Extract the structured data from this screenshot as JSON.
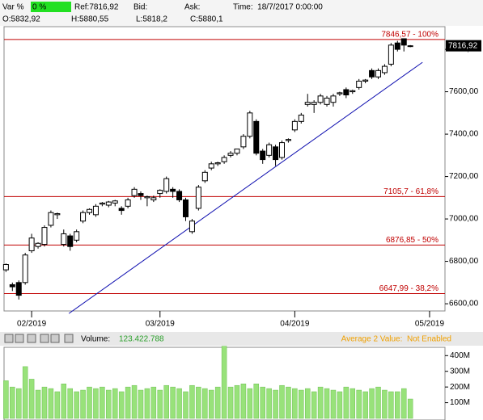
{
  "header": {
    "var_label": "Var %",
    "var_value": "0 %",
    "ref": "Ref:7816,92",
    "bid": "Bid:",
    "ask": "Ask:",
    "time": "Time:  18/7/2017 0:00:00",
    "open": "O:5832,92",
    "high": "H:5880,55",
    "low": "L:5818,2",
    "close": "C:5880,1"
  },
  "volume_bar": {
    "label": "Volume:",
    "value": "123.422.788",
    "average": "Average 2 Value:  Not Enabled"
  },
  "chart_data": [
    {
      "type": "candlestick",
      "last_label": "7816,92",
      "last_value": 7816.92,
      "xlim": [
        -0.3,
        68.4
      ],
      "xticks": [
        {
          "value": 4,
          "label": "02/2019"
        },
        {
          "value": 24,
          "label": "03/2019"
        },
        {
          "value": 45,
          "label": "04/2019"
        },
        {
          "value": 66,
          "label": "05/2019"
        }
      ],
      "ylim": [
        6566,
        7907
      ],
      "yticks": [
        {
          "value": 6600,
          "label": "6600,00"
        },
        {
          "value": 6800,
          "label": "6800,00"
        },
        {
          "value": 7000,
          "label": "7000,00"
        },
        {
          "value": 7200,
          "label": "7200,00"
        },
        {
          "value": 7400,
          "label": "7400,00"
        },
        {
          "value": 7600,
          "label": "7600,00"
        },
        {
          "value": 7800,
          "label": "7800,00"
        }
      ],
      "open": [
        6760,
        6690,
        6700,
        6700,
        6850,
        6870,
        6880,
        6970,
        7020,
        6880,
        6920,
        6900,
        6990,
        7030,
        7020,
        7070,
        7065,
        7075,
        7050,
        7060,
        7110,
        7120,
        7100,
        7090,
        7120,
        7130,
        7140,
        7130,
        7090,
        6940,
        7050,
        7180,
        7240,
        7260,
        7270,
        7300,
        7310,
        7340,
        7390,
        7460,
        7320,
        7300,
        7340,
        7290,
        7370,
        7420,
        7460,
        7540,
        7540,
        7550,
        7540,
        7550,
        7590,
        7610,
        7600,
        7620,
        7650,
        7700,
        7670,
        7690,
        7730,
        7830,
        7850,
        7815
      ],
      "high": [
        6790,
        6700,
        6710,
        6840,
        6930,
        6890,
        6970,
        7040,
        7030,
        6950,
        6930,
        6950,
        7040,
        7050,
        7070,
        7080,
        7085,
        7090,
        7060,
        7100,
        7150,
        7130,
        7110,
        7110,
        7140,
        7200,
        7150,
        7140,
        7100,
        7000,
        7160,
        7230,
        7270,
        7270,
        7300,
        7320,
        7330,
        7400,
        7510,
        7470,
        7330,
        7360,
        7350,
        7370,
        7380,
        7470,
        7500,
        7590,
        7560,
        7590,
        7580,
        7590,
        7600,
        7620,
        7610,
        7660,
        7660,
        7710,
        7710,
        7730,
        7830,
        7840,
        7850,
        7820
      ],
      "low": [
        6750,
        6660,
        6620,
        6690,
        6840,
        6860,
        6870,
        6960,
        7000,
        6870,
        6850,
        6890,
        6980,
        7020,
        7010,
        7060,
        7055,
        7060,
        7020,
        7050,
        7100,
        7090,
        7060,
        7080,
        7100,
        7120,
        7100,
        7080,
        6990,
        6930,
        7040,
        7170,
        7230,
        7250,
        7260,
        7290,
        7300,
        7330,
        7380,
        7300,
        7260,
        7290,
        7250,
        7280,
        7360,
        7410,
        7450,
        7530,
        7500,
        7540,
        7530,
        7530,
        7580,
        7570,
        7590,
        7610,
        7640,
        7660,
        7660,
        7680,
        7720,
        7790,
        7790,
        7810
      ],
      "close": [
        6785,
        6680,
        6640,
        6830,
        6910,
        6885,
        6960,
        7030,
        7025,
        6930,
        6870,
        6940,
        7030,
        7045,
        7060,
        7075,
        7080,
        7085,
        7040,
        7090,
        7140,
        7110,
        7105,
        7100,
        7135,
        7190,
        7130,
        7090,
        7010,
        6990,
        7150,
        7220,
        7260,
        7265,
        7290,
        7310,
        7330,
        7390,
        7500,
        7310,
        7280,
        7350,
        7280,
        7360,
        7375,
        7460,
        7490,
        7550,
        7550,
        7580,
        7570,
        7580,
        7595,
        7585,
        7605,
        7650,
        7655,
        7670,
        7700,
        7720,
        7820,
        7800,
        7820,
        7816.92
      ],
      "levels": [
        {
          "value": 7846.57,
          "label": "7846,57 - 100%"
        },
        {
          "value": 7105.7,
          "label": "7105,7 - 61,8%"
        },
        {
          "value": 6876.85,
          "label": "6876,85 - 50%"
        },
        {
          "value": 6647.99,
          "label": "6647,99 - 38,2%"
        }
      ],
      "trendline": {
        "x": [
          9.8,
          64.9
        ],
        "y": [
          6554,
          7739
        ]
      }
    },
    {
      "type": "volume",
      "color": "#98e27a",
      "ylim": [
        0,
        453
      ],
      "yticks": [
        {
          "value": 100,
          "label": "100M"
        },
        {
          "value": 200,
          "label": "200M"
        },
        {
          "value": 300,
          "label": "300M"
        },
        {
          "value": 400,
          "label": "400M"
        }
      ],
      "values": [
        240,
        200,
        190,
        330,
        250,
        180,
        200,
        190,
        170,
        220,
        190,
        170,
        180,
        200,
        190,
        200,
        180,
        190,
        170,
        200,
        210,
        180,
        190,
        200,
        180,
        210,
        200,
        190,
        170,
        210,
        200,
        190,
        180,
        200,
        460,
        200,
        210,
        220,
        190,
        220,
        200,
        190,
        180,
        210,
        200,
        190,
        180,
        190,
        170,
        200,
        190,
        180,
        170,
        200,
        190,
        180,
        170,
        190,
        200,
        180,
        170,
        170,
        190,
        123.4
      ]
    }
  ]
}
